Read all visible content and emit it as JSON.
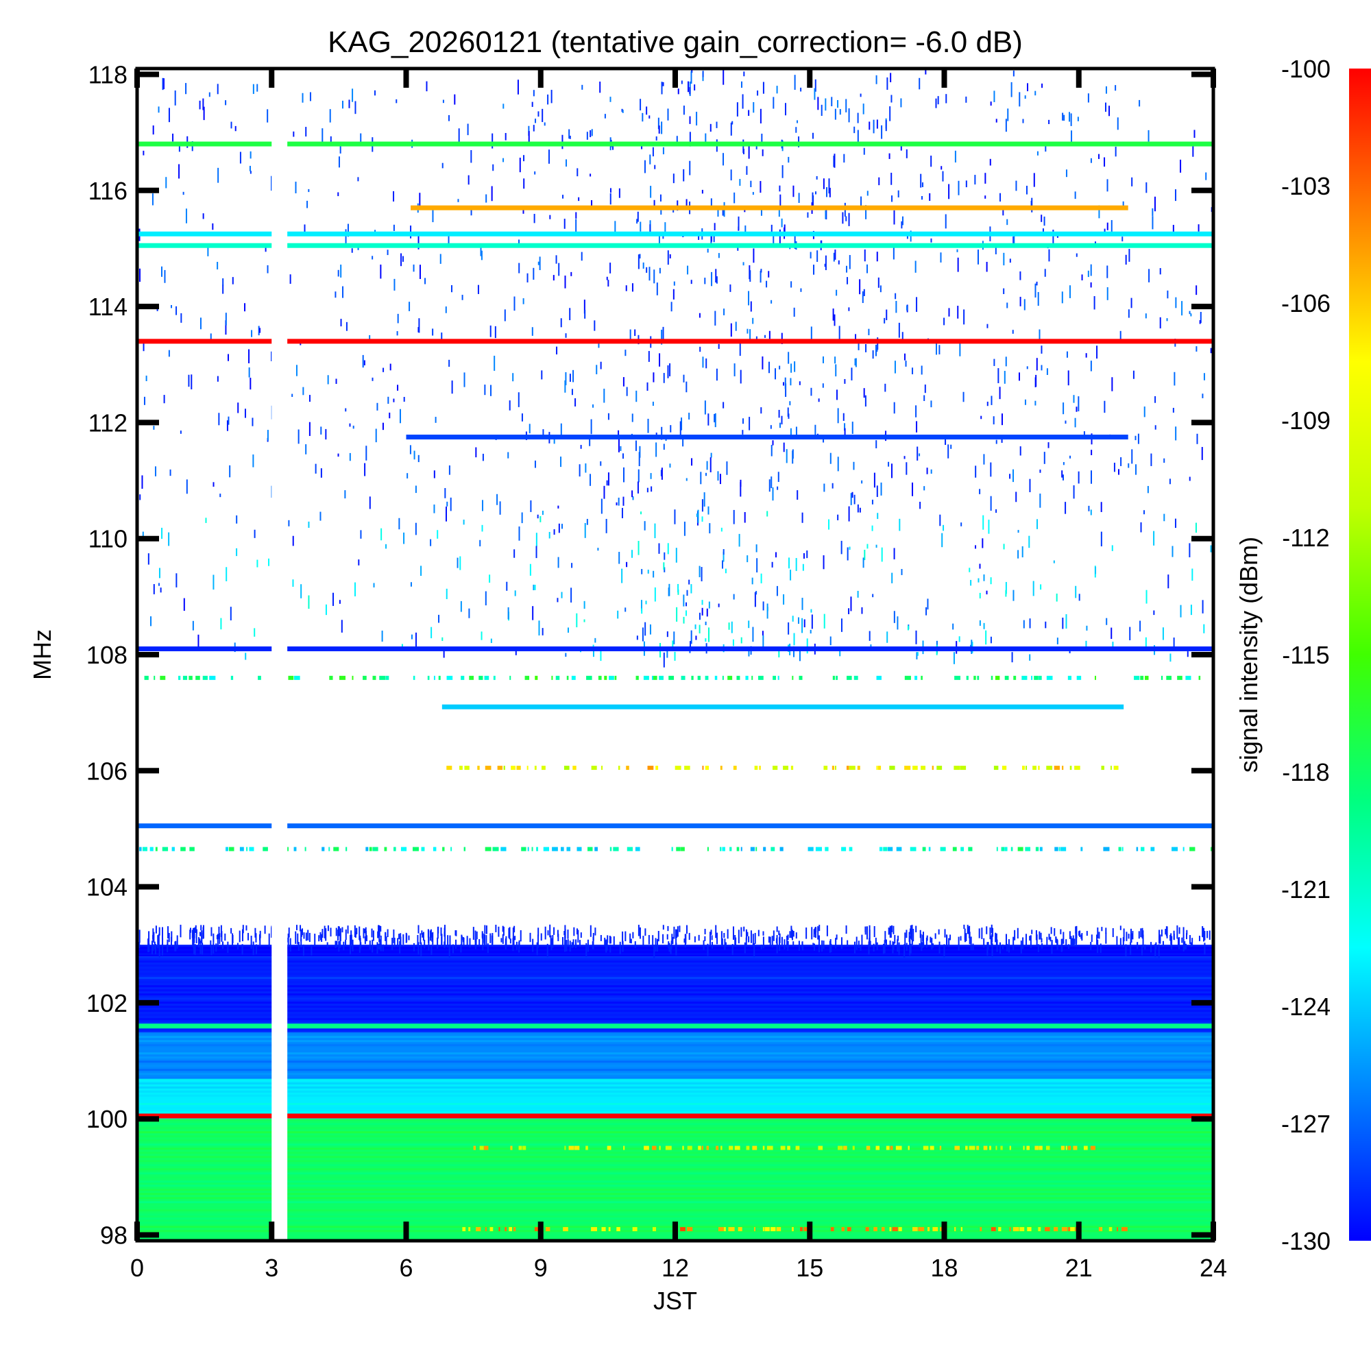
{
  "chart_data": {
    "type": "heatmap",
    "title": "KAG_20260121 (tentative gain_correction= -6.0 dB)",
    "xlabel": "JST",
    "ylabel": "MHz",
    "colorbar_label": "signal intensity (dBm)",
    "xlim": [
      0,
      24
    ],
    "ylim": [
      97.9,
      118.1
    ],
    "clim": [
      -130,
      -100
    ],
    "x_ticks": [
      "0",
      "3",
      "6",
      "9",
      "12",
      "15",
      "18",
      "21",
      "24"
    ],
    "y_ticks": [
      "98",
      "100",
      "102",
      "104",
      "106",
      "108",
      "110",
      "112",
      "114",
      "116",
      "118"
    ],
    "colorbar_ticks": [
      "-100",
      "-103",
      "-106",
      "-109",
      "-112",
      "-115",
      "-118",
      "-121",
      "-124",
      "-127",
      "-130"
    ],
    "data_gap_hours": [
      3.0,
      3.35
    ],
    "continuous_lines": [
      {
        "freq_mhz": 116.8,
        "level_dbm": -117,
        "from_hour": 0,
        "to_hour": 24
      },
      {
        "freq_mhz": 115.7,
        "level_dbm": -105,
        "from_hour": 6.1,
        "to_hour": 22.1
      },
      {
        "freq_mhz": 115.25,
        "level_dbm": -123,
        "from_hour": 0,
        "to_hour": 24
      },
      {
        "freq_mhz": 115.05,
        "level_dbm": -121,
        "from_hour": 0,
        "to_hour": 24
      },
      {
        "freq_mhz": 113.4,
        "level_dbm": -100,
        "from_hour": 0,
        "to_hour": 24
      },
      {
        "freq_mhz": 111.75,
        "level_dbm": -128,
        "from_hour": 6.0,
        "to_hour": 22.1
      },
      {
        "freq_mhz": 108.1,
        "level_dbm": -129,
        "from_hour": 0,
        "to_hour": 24
      },
      {
        "freq_mhz": 107.1,
        "level_dbm": -124,
        "from_hour": 6.8,
        "to_hour": 22.0
      },
      {
        "freq_mhz": 105.05,
        "level_dbm": -127,
        "from_hour": 0,
        "to_hour": 24
      },
      {
        "freq_mhz": 101.6,
        "level_dbm": -119,
        "from_hour": 0,
        "to_hour": 24
      },
      {
        "freq_mhz": 100.05,
        "level_dbm": -100,
        "from_hour": 0,
        "to_hour": 24
      }
    ],
    "intermittent_lines": [
      {
        "freq_mhz": 107.6,
        "level_dbm": -119,
        "from_hour": 0,
        "to_hour": 24
      },
      {
        "freq_mhz": 106.05,
        "level_dbm": -108,
        "from_hour": 6.8,
        "to_hour": 21.8
      },
      {
        "freq_mhz": 104.65,
        "level_dbm": -121,
        "from_hour": 0,
        "to_hour": 24
      },
      {
        "freq_mhz": 99.5,
        "level_dbm": -108,
        "from_hour": 7.5,
        "to_hour": 21.5
      },
      {
        "freq_mhz": 98.1,
        "level_dbm": -106,
        "from_hour": 7.0,
        "to_hour": 22.0
      }
    ],
    "background_bands": [
      {
        "freq_range_mhz": [
          97.9,
          100.0
        ],
        "level_dbm": -118
      },
      {
        "freq_range_mhz": [
          100.0,
          100.7
        ],
        "level_dbm": -123
      },
      {
        "freq_range_mhz": [
          100.7,
          101.5
        ],
        "level_dbm": -126
      },
      {
        "freq_range_mhz": [
          101.5,
          102.8
        ],
        "level_dbm": -129
      },
      {
        "freq_range_mhz": [
          102.8,
          103.0
        ],
        "level_dbm": -130
      }
    ],
    "sporadic_noise_region_mhz": [
      108.0,
      118.1
    ],
    "colors": {
      "colormap": [
        "#0000ff",
        "#0080ff",
        "#00ffff",
        "#00ff80",
        "#40ff00",
        "#c0ff00",
        "#ffff00",
        "#ff8000",
        "#ff0000"
      ],
      "axis": "#000000",
      "background": "#ffffff"
    }
  }
}
